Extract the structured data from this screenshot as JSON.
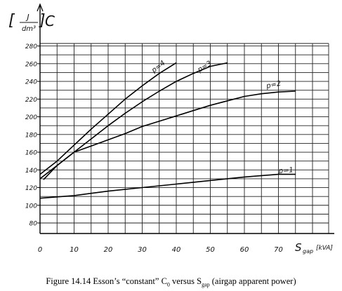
{
  "chart_data": {
    "type": "line",
    "ylabel_unit_num": "J",
    "ylabel_unit_den": "dm³",
    "ylabel_symbol": "C",
    "xlabel_symbol": "S",
    "xlabel_subscript": "gap",
    "xlabel_unit": "[kVA]",
    "xlim": [
      0,
      80
    ],
    "ylim": [
      70,
      285
    ],
    "x_ticks": [
      0,
      10,
      20,
      30,
      40,
      50,
      60,
      70
    ],
    "y_ticks": [
      80,
      100,
      120,
      140,
      160,
      180,
      200,
      220,
      240,
      260,
      280
    ],
    "grid": true,
    "series": [
      {
        "name": "p=4",
        "x": [
          0,
          5,
          10,
          15,
          20,
          25,
          30,
          35,
          40
        ],
        "y": [
          135,
          150,
          168,
          186,
          203,
          220,
          235,
          249,
          261
        ]
      },
      {
        "name": "p=3",
        "x": [
          0,
          5,
          10,
          15,
          20,
          25,
          30,
          35,
          40,
          45,
          50,
          55
        ],
        "y": [
          130,
          145,
          160,
          175,
          190,
          204,
          217,
          229,
          240,
          249,
          257,
          261
        ]
      },
      {
        "name": "p=2",
        "x": [
          1,
          5,
          10,
          15,
          20,
          25,
          30,
          35,
          40,
          45,
          50,
          55,
          60,
          65,
          70,
          75
        ],
        "y": [
          129,
          145,
          160,
          167,
          174,
          181,
          189,
          195,
          201,
          207,
          213,
          218,
          223,
          226,
          228,
          229
        ]
      },
      {
        "name": "p=1",
        "x": [
          0,
          10,
          20,
          30,
          40,
          50,
          60,
          70,
          75
        ],
        "y": [
          108,
          111,
          116,
          120,
          124,
          128,
          132,
          135,
          135
        ]
      }
    ]
  },
  "caption": {
    "prefix": "Figure 14.14 Esson’s “constant” C",
    "sub1": "0",
    "middle": " versus S",
    "sub2": "gap",
    "suffix": " (airgap apparent power)"
  }
}
